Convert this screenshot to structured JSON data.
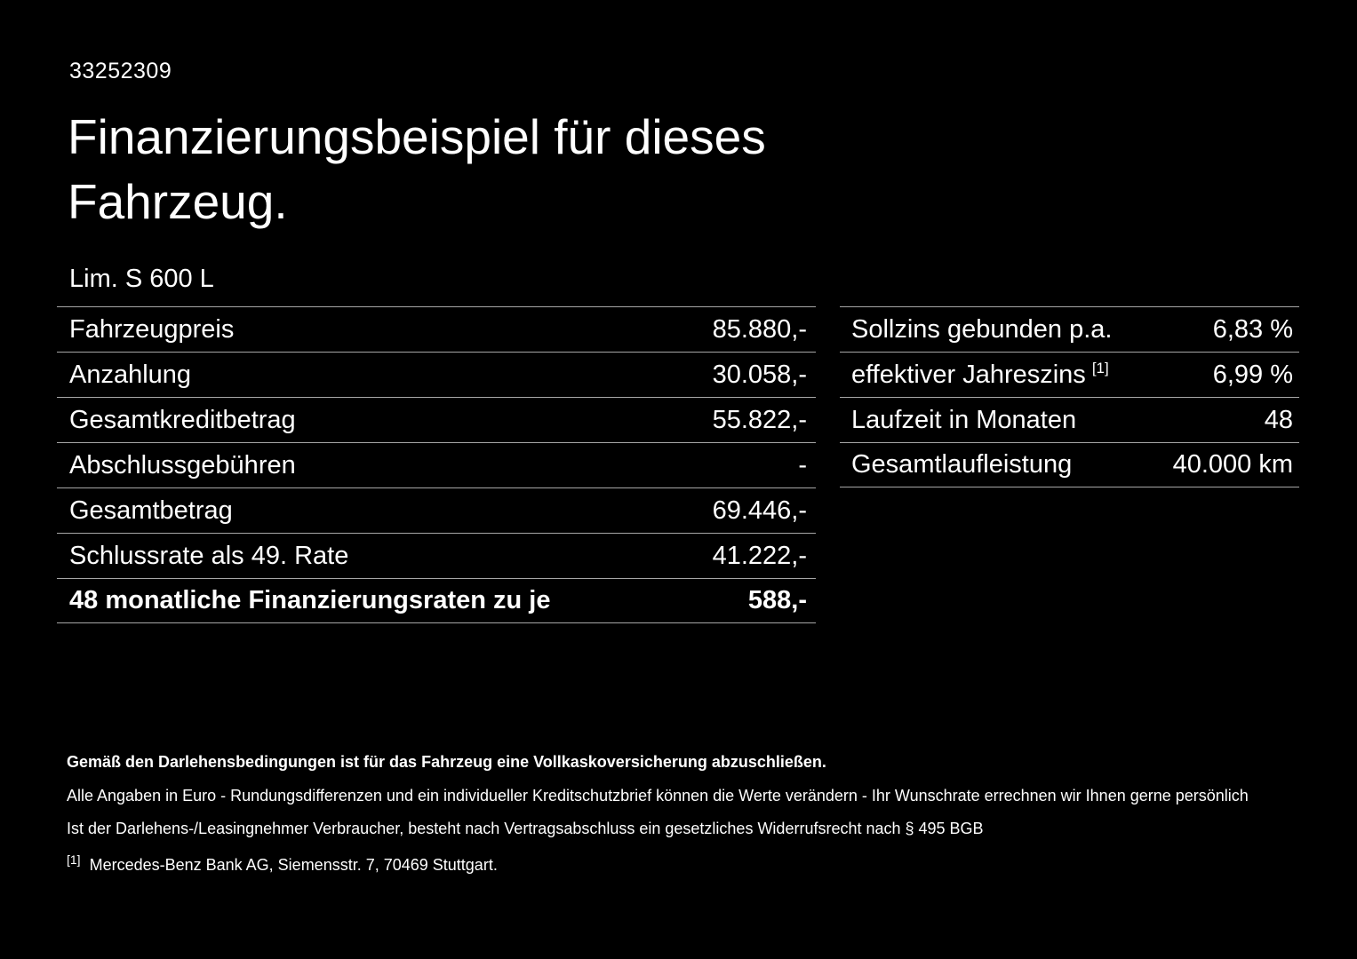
{
  "colors": {
    "background": "#000000",
    "text": "#ffffff",
    "divider": "#a6a6a6"
  },
  "doc": {
    "id_number": "33252309",
    "title": "Finanzierungsbeispiel für dieses Fahrzeug.",
    "model": "Lim. S 600 L"
  },
  "left_table": {
    "rows": [
      {
        "label": "Fahrzeugpreis",
        "value": "85.880,-"
      },
      {
        "label": "Anzahlung",
        "value": "30.058,-"
      },
      {
        "label": "Gesamtkreditbetrag",
        "value": "55.822,-"
      },
      {
        "label": "Abschlussgebühren",
        "value": "-"
      },
      {
        "label": "Gesamtbetrag",
        "value": "69.446,-"
      },
      {
        "label": "Schlussrate als 49. Rate",
        "value": "41.222,-"
      },
      {
        "label": "48 monatliche Finanzierungsraten zu je",
        "value": "588,-"
      }
    ]
  },
  "right_table": {
    "rows": [
      {
        "label": "Sollzins gebunden p.a.",
        "sup": "",
        "value": "6,83 %"
      },
      {
        "label": "effektiver Jahreszins",
        "sup": "[1]",
        "value": "6,99 %"
      },
      {
        "label": "Laufzeit in Monaten",
        "sup": "",
        "value": "48"
      },
      {
        "label": "Gesamtlaufleistung",
        "sup": "",
        "value": "40.000 km"
      }
    ]
  },
  "footnotes": {
    "insurance": "Gemäß den Darlehensbedingungen ist für das Fahrzeug eine Vollkaskoversicherung abzuschließen.",
    "euro_note": "Alle Angaben in Euro - Rundungsdifferenzen und ein individueller Kreditschutzbrief können die Werte verändern - Ihr Wunschrate errechnen wir Ihnen gerne persönlich",
    "withdrawal_note": "Ist der Darlehens-/Leasingnehmer Verbraucher, besteht nach Vertragsabschluss ein gesetzliches Widerrufsrecht nach § 495 BGB",
    "bank_marker": "[1]",
    "bank_ref": "Mercedes-Benz Bank AG, Siemensstr. 7, 70469 Stuttgart."
  }
}
